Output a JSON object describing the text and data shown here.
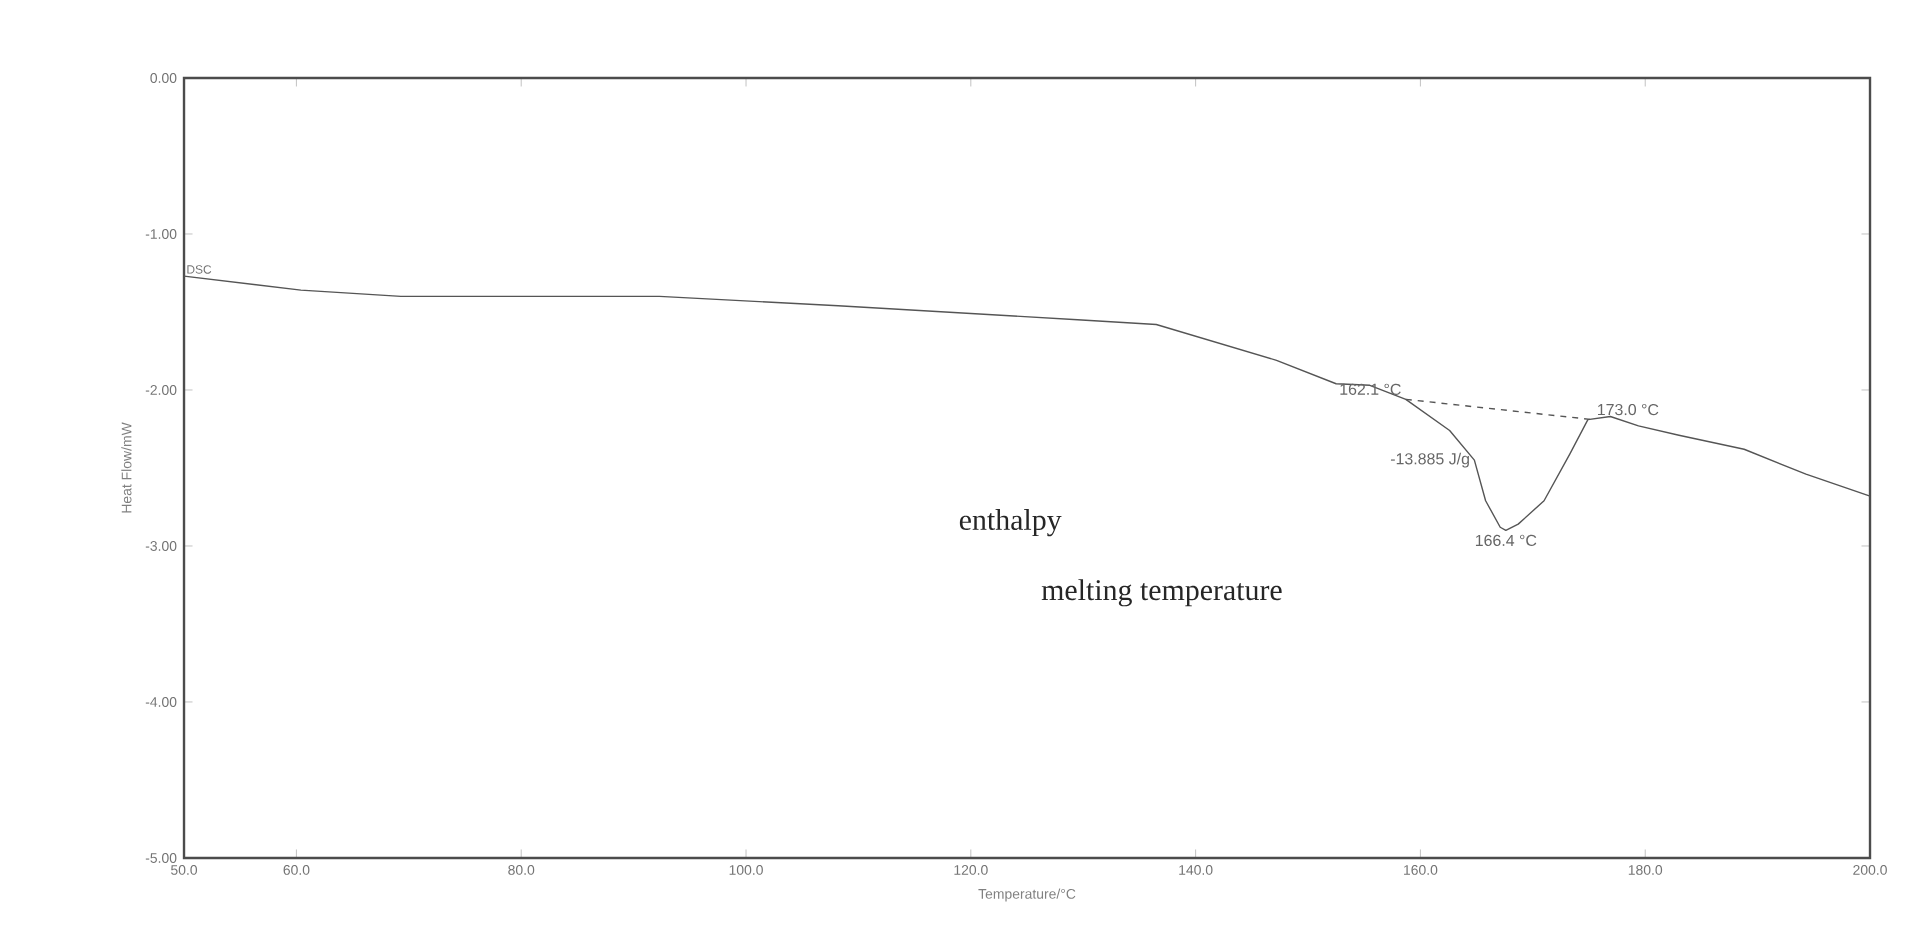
{
  "chart_data": {
    "type": "line",
    "xlabel": "Temperature/°C",
    "ylabel": "Heat Flow/mW",
    "xlim": [
      50,
      200
    ],
    "ylim": [
      -5,
      0
    ],
    "xticks": [
      {
        "value": 50,
        "label": "50.0"
      },
      {
        "value": 60,
        "label": "60.0"
      },
      {
        "value": 80,
        "label": "80.0"
      },
      {
        "value": 100,
        "label": "100.0"
      },
      {
        "value": 120,
        "label": "120.0"
      },
      {
        "value": 140,
        "label": "140.0"
      },
      {
        "value": 160,
        "label": "160.0"
      },
      {
        "value": 180,
        "label": "180.0"
      },
      {
        "value": 200,
        "label": "200.0"
      }
    ],
    "yticks": [
      {
        "value": 0,
        "label": "0.00"
      },
      {
        "value": -1,
        "label": "-1.00"
      },
      {
        "value": -2,
        "label": "-2.00"
      },
      {
        "value": -3,
        "label": "-3.00"
      },
      {
        "value": -4,
        "label": "-4.00"
      },
      {
        "value": -5,
        "label": "-5.00"
      }
    ],
    "grid": false,
    "legend": false,
    "marker": "none",
    "series": [
      {
        "name": "DSC",
        "color": "#555555",
        "line_style": "solid",
        "x": [
          50,
          60.4,
          69.3,
          92.3,
          108.2,
          129.5,
          136.5,
          147.2,
          152.5,
          155.5,
          158.7,
          162.6,
          164.8,
          165.8,
          167.1,
          167.6,
          168.7,
          171.0,
          173.3,
          174.9,
          176.9,
          179.4,
          183.0,
          188.8,
          194.3,
          200
        ],
        "values": [
          -1.27,
          -1.36,
          -1.4,
          -1.4,
          -1.46,
          -1.55,
          -1.58,
          -1.81,
          -1.96,
          -1.97,
          -2.06,
          -2.26,
          -2.45,
          -2.71,
          -2.88,
          -2.9,
          -2.86,
          -2.71,
          -2.41,
          -2.19,
          -2.17,
          -2.23,
          -2.29,
          -2.38,
          -2.54,
          -2.68
        ]
      },
      {
        "color": "#555555",
        "line_style": "dashed",
        "x": [
          158.7,
          175.3
        ],
        "values": [
          -2.06,
          -2.19
        ]
      }
    ],
    "annotations": [
      {
        "text": "162.1 °C",
        "x": 158.7,
        "y": -2.06
      },
      {
        "text": "173.0 °C",
        "x": 175.3,
        "y": -2.19
      },
      {
        "text": "-13.885 J/g",
        "x": 164.8,
        "y": -2.45
      },
      {
        "text": "166.4 °C",
        "x": 167.6,
        "y": -2.9
      },
      "enthalpy",
      "melting temperature"
    ]
  }
}
